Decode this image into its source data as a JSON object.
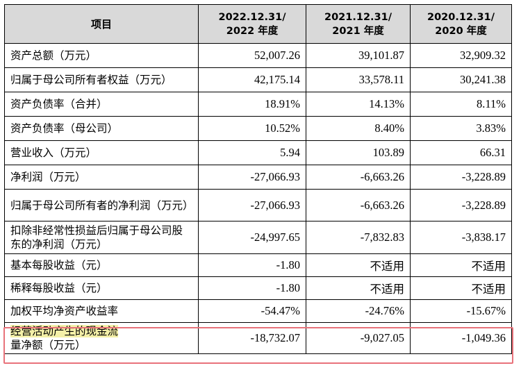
{
  "table": {
    "headers": [
      {
        "line1": "项目",
        "line2": ""
      },
      {
        "line1": "2022.12.31/",
        "line2": "2022 年度"
      },
      {
        "line1": "2021.12.31/",
        "line2": "2021 年度"
      },
      {
        "line1": "2020.12.31/",
        "line2": "2020 年度"
      }
    ],
    "rows": [
      {
        "label": "资产总额（万元）",
        "v2022": "52,007.26",
        "v2021": "39,101.87",
        "v2020": "32,909.32"
      },
      {
        "label": "归属于母公司所有者权益（万元）",
        "v2022": "42,175.14",
        "v2021": "33,578.11",
        "v2020": "30,241.38"
      },
      {
        "label": "资产负债率（合并）",
        "v2022": "18.91%",
        "v2021": "14.13%",
        "v2020": "8.11%"
      },
      {
        "label": "资产负债率（母公司）",
        "v2022": "10.52%",
        "v2021": "8.40%",
        "v2020": "3.83%"
      },
      {
        "label": "营业收入（万元）",
        "v2022": "5.94",
        "v2021": "103.89",
        "v2020": "66.31"
      },
      {
        "label": "净利润（万元）",
        "v2022": "-27,066.93",
        "v2021": "-6,663.26",
        "v2020": "-3,228.89"
      },
      {
        "label": "归属于母公司所有者的净利润（万元）",
        "v2022": "-27,066.93",
        "v2021": "-6,663.26",
        "v2020": "-3,228.89"
      },
      {
        "label": "扣除非经常性损益后归属于母公司股东的净利润（万元）",
        "v2022": "-24,997.65",
        "v2021": "-7,832.83",
        "v2020": "-3,838.17"
      },
      {
        "label": "基本每股收益（元）",
        "v2022": "-1.80",
        "v2021": "不适用",
        "v2020": "不适用"
      },
      {
        "label": "稀释每股收益（元）",
        "v2022": "-1.80",
        "v2021": "不适用",
        "v2020": "不适用"
      },
      {
        "label": "加权平均净资产收益率",
        "v2022": "-54.47%",
        "v2021": "-24.76%",
        "v2020": "-15.67%"
      },
      {
        "label_highlight": "经营活动产生的现金流",
        "label_rest": "量净额（万元）",
        "v2022": "-18,732.07",
        "v2021": "-9,027.05",
        "v2020": "-1,049.36"
      }
    ]
  },
  "highlight_color": "#f4f0a8",
  "box_color": "#e8727a"
}
